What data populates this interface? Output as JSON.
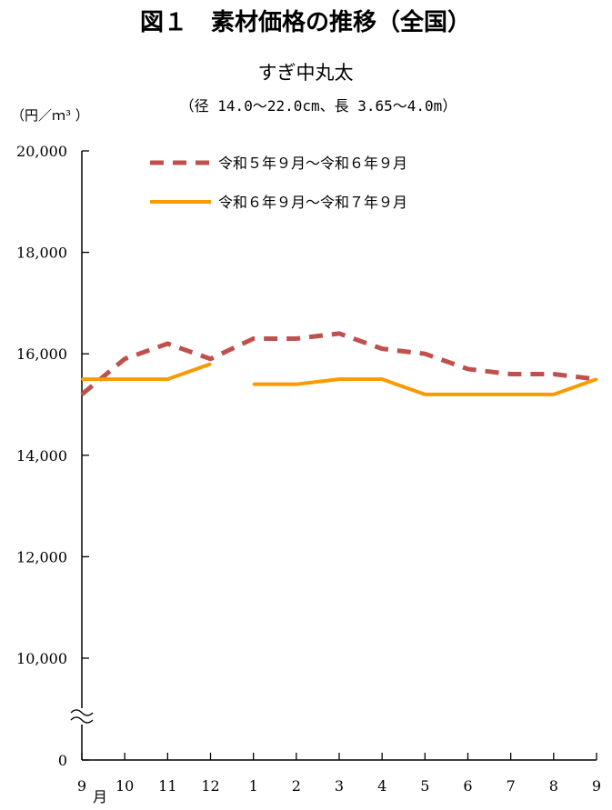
{
  "figure_title": "図１　素材価格の推移（全国）",
  "colors": {
    "series_prev": "#c0504d",
    "series_curr": "#f79b00",
    "axis": "#000000"
  },
  "chart_data": {
    "type": "line",
    "title": "すぎ中丸太",
    "subtitle": "（径 14.0～22.0cm、長 3.65～4.0m）",
    "ylabel": "（円／ｍ³ ）",
    "xlabel": "",
    "month_unit_label": "月",
    "ylim": [
      0,
      20000
    ],
    "axis_break": {
      "from": 0,
      "to": 9000
    },
    "yticks": [
      0,
      10000,
      12000,
      14000,
      16000,
      18000,
      20000
    ],
    "ytick_labels": [
      "0",
      "10,000",
      "12,000",
      "14,000",
      "16,000",
      "18,000",
      "20,000"
    ],
    "categories": [
      "9",
      "10",
      "11",
      "12",
      "1",
      "2",
      "3",
      "4",
      "5",
      "6",
      "7",
      "8",
      "9"
    ],
    "grid": false,
    "legend_position": "top",
    "series": [
      {
        "name": "令和５年９月～令和６年９月",
        "style": "dashed",
        "color": "#c0504d",
        "values": [
          15200,
          15900,
          16200,
          15900,
          16300,
          16300,
          16400,
          16100,
          16000,
          15700,
          15600,
          15600,
          15500
        ]
      },
      {
        "name": "令和６年９月～令和７年９月",
        "style": "solid",
        "color": "#f79b00",
        "values": [
          15500,
          15500,
          15500,
          15800,
          15400,
          15400,
          15500,
          15500,
          15200,
          15200,
          15200,
          15200,
          15500
        ],
        "breaks_after_index": [
          3
        ]
      }
    ]
  }
}
